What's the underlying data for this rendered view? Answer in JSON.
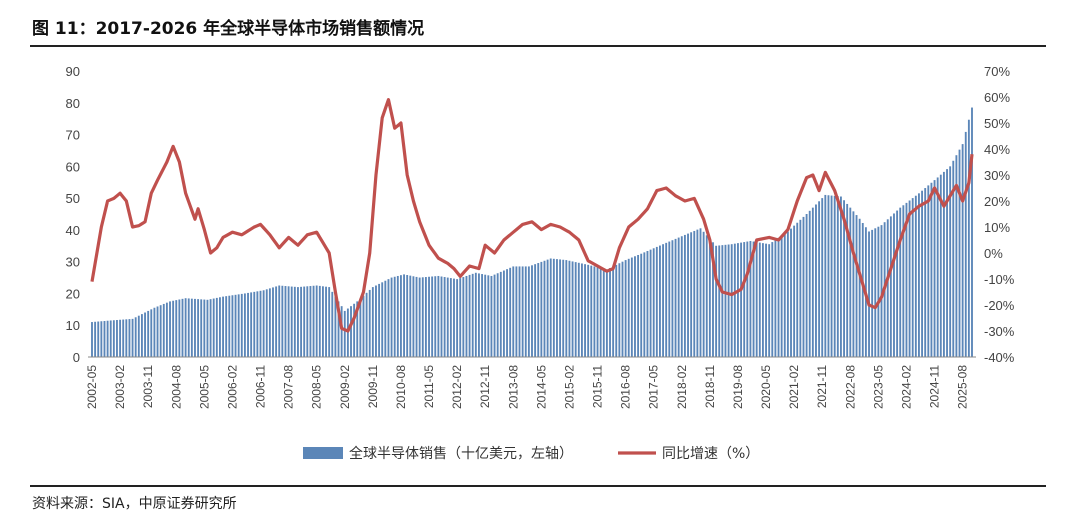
{
  "title": "图 11：2017-2026 年全球半导体市场销售额情况",
  "source": "资料来源：SIA，中原证券研究所",
  "colors": {
    "bar": "#5b86b8",
    "line": "#c0504d"
  },
  "chart_data": {
    "type": "bar",
    "x_labels": [
      "2002-05",
      "2003-02",
      "2003-11",
      "2004-08",
      "2005-05",
      "2006-02",
      "2006-11",
      "2007-08",
      "2008-05",
      "2009-02",
      "2009-11",
      "2010-08",
      "2011-05",
      "2012-02",
      "2012-11",
      "2013-08",
      "2014-05",
      "2015-02",
      "2015-11",
      "2016-08",
      "2017-05",
      "2018-02",
      "2018-11",
      "2019-08",
      "2020-05",
      "2021-02",
      "2021-11",
      "2022-08",
      "2023-05",
      "2024-02",
      "2024-11",
      "2025-08"
    ],
    "yleft_ticks": [
      "0",
      "10",
      "20",
      "30",
      "40",
      "50",
      "60",
      "70",
      "80",
      "90"
    ],
    "yright_ticks": [
      "-40%",
      "-30%",
      "-20%",
      "-10%",
      "0%",
      "10%",
      "20%",
      "30%",
      "40%",
      "50%",
      "60%",
      "70%"
    ],
    "ylim_left": [
      0,
      90
    ],
    "ylim_right": [
      -40,
      70
    ],
    "x_range": [
      "2002-05",
      "2025-11"
    ],
    "series": [
      {
        "name": "全球半导体销售（十亿美元，左轴）",
        "type": "bar",
        "axis": "left",
        "keypoints": [
          [
            "2002-05",
            11.0
          ],
          [
            "2002-11",
            11.5
          ],
          [
            "2003-06",
            12.0
          ],
          [
            "2003-09",
            13.5
          ],
          [
            "2004-01",
            15.5
          ],
          [
            "2004-06",
            17.5
          ],
          [
            "2004-11",
            18.5
          ],
          [
            "2005-06",
            18.0
          ],
          [
            "2005-11",
            19.0
          ],
          [
            "2006-06",
            20.0
          ],
          [
            "2006-12",
            21.0
          ],
          [
            "2007-05",
            22.5
          ],
          [
            "2007-11",
            22.0
          ],
          [
            "2008-05",
            22.5
          ],
          [
            "2008-09",
            22.0
          ],
          [
            "2008-12",
            17.5
          ],
          [
            "2009-02",
            14.5
          ],
          [
            "2009-06",
            17.5
          ],
          [
            "2009-11",
            22.0
          ],
          [
            "2010-05",
            25.0
          ],
          [
            "2010-09",
            26.0
          ],
          [
            "2011-02",
            25.0
          ],
          [
            "2011-08",
            25.5
          ],
          [
            "2012-02",
            24.5
          ],
          [
            "2012-08",
            26.5
          ],
          [
            "2013-01",
            25.5
          ],
          [
            "2013-08",
            28.5
          ],
          [
            "2014-01",
            28.5
          ],
          [
            "2014-08",
            31.0
          ],
          [
            "2015-01",
            30.5
          ],
          [
            "2015-08",
            29.0
          ],
          [
            "2016-02",
            27.5
          ],
          [
            "2016-08",
            30.5
          ],
          [
            "2017-01",
            32.5
          ],
          [
            "2017-08",
            35.5
          ],
          [
            "2018-02",
            38.0
          ],
          [
            "2018-08",
            40.5
          ],
          [
            "2019-01",
            35.0
          ],
          [
            "2019-06",
            35.5
          ],
          [
            "2019-12",
            36.5
          ],
          [
            "2020-06",
            35.5
          ],
          [
            "2020-12",
            39.5
          ],
          [
            "2021-06",
            45.0
          ],
          [
            "2021-12",
            51.0
          ],
          [
            "2022-05",
            50.5
          ],
          [
            "2022-11",
            43.5
          ],
          [
            "2023-02",
            39.5
          ],
          [
            "2023-06",
            41.5
          ],
          [
            "2023-12",
            47.0
          ],
          [
            "2024-06",
            51.5
          ],
          [
            "2024-12",
            56.5
          ],
          [
            "2025-04",
            60.0
          ],
          [
            "2025-08",
            67.0
          ],
          [
            "2025-11",
            78.5
          ]
        ]
      },
      {
        "name": "同比增速（%）",
        "type": "line",
        "axis": "right",
        "keypoints": [
          [
            "2002-05",
            -11
          ],
          [
            "2002-08",
            10
          ],
          [
            "2002-10",
            20
          ],
          [
            "2002-12",
            21
          ],
          [
            "2003-02",
            23
          ],
          [
            "2003-04",
            20
          ],
          [
            "2003-06",
            10
          ],
          [
            "2003-08",
            10.5
          ],
          [
            "2003-10",
            12
          ],
          [
            "2003-12",
            23
          ],
          [
            "2004-02",
            28
          ],
          [
            "2004-05",
            35
          ],
          [
            "2004-07",
            41
          ],
          [
            "2004-09",
            35
          ],
          [
            "2004-11",
            23
          ],
          [
            "2005-02",
            13
          ],
          [
            "2005-03",
            17
          ],
          [
            "2005-05",
            9
          ],
          [
            "2005-07",
            0
          ],
          [
            "2005-09",
            2
          ],
          [
            "2005-11",
            6
          ],
          [
            "2006-02",
            8
          ],
          [
            "2006-05",
            7
          ],
          [
            "2006-09",
            10
          ],
          [
            "2006-11",
            11
          ],
          [
            "2007-02",
            7
          ],
          [
            "2007-05",
            2
          ],
          [
            "2007-08",
            6
          ],
          [
            "2007-11",
            3
          ],
          [
            "2008-02",
            7
          ],
          [
            "2008-05",
            8
          ],
          [
            "2008-09",
            0
          ],
          [
            "2008-11",
            -15
          ],
          [
            "2009-01",
            -29
          ],
          [
            "2009-03",
            -30
          ],
          [
            "2009-05",
            -25
          ],
          [
            "2009-08",
            -15
          ],
          [
            "2009-10",
            0
          ],
          [
            "2009-12",
            30
          ],
          [
            "2010-02",
            52
          ],
          [
            "2010-04",
            59
          ],
          [
            "2010-06",
            48
          ],
          [
            "2010-08",
            50
          ],
          [
            "2010-10",
            30
          ],
          [
            "2010-12",
            20
          ],
          [
            "2011-02",
            12
          ],
          [
            "2011-05",
            3
          ],
          [
            "2011-08",
            -2
          ],
          [
            "2011-11",
            -4
          ],
          [
            "2012-01",
            -6
          ],
          [
            "2012-03",
            -9
          ],
          [
            "2012-06",
            -5
          ],
          [
            "2012-09",
            -6
          ],
          [
            "2012-11",
            3
          ],
          [
            "2013-02",
            0
          ],
          [
            "2013-05",
            5
          ],
          [
            "2013-08",
            8
          ],
          [
            "2013-11",
            11
          ],
          [
            "2014-02",
            12
          ],
          [
            "2014-05",
            9
          ],
          [
            "2014-08",
            11
          ],
          [
            "2014-11",
            10
          ],
          [
            "2015-02",
            8
          ],
          [
            "2015-05",
            5
          ],
          [
            "2015-08",
            -3
          ],
          [
            "2015-11",
            -5
          ],
          [
            "2016-02",
            -7
          ],
          [
            "2016-04",
            -6
          ],
          [
            "2016-06",
            2
          ],
          [
            "2016-09",
            10
          ],
          [
            "2016-12",
            13
          ],
          [
            "2017-03",
            17
          ],
          [
            "2017-06",
            24
          ],
          [
            "2017-09",
            25
          ],
          [
            "2017-12",
            22
          ],
          [
            "2018-03",
            20
          ],
          [
            "2018-06",
            21
          ],
          [
            "2018-09",
            13
          ],
          [
            "2018-11",
            5
          ],
          [
            "2019-01",
            -10
          ],
          [
            "2019-03",
            -15
          ],
          [
            "2019-06",
            -16
          ],
          [
            "2019-09",
            -14
          ],
          [
            "2019-11",
            -8
          ],
          [
            "2020-02",
            5
          ],
          [
            "2020-06",
            6
          ],
          [
            "2020-09",
            5
          ],
          [
            "2020-12",
            9
          ],
          [
            "2021-03",
            20
          ],
          [
            "2021-06",
            29
          ],
          [
            "2021-08",
            30
          ],
          [
            "2021-10",
            24
          ],
          [
            "2021-12",
            31
          ],
          [
            "2022-03",
            24
          ],
          [
            "2022-06",
            13
          ],
          [
            "2022-09",
            0
          ],
          [
            "2022-12",
            -12
          ],
          [
            "2023-02",
            -20
          ],
          [
            "2023-04",
            -21
          ],
          [
            "2023-06",
            -17
          ],
          [
            "2023-09",
            -6
          ],
          [
            "2023-12",
            5
          ],
          [
            "2024-03",
            15
          ],
          [
            "2024-06",
            18
          ],
          [
            "2024-09",
            20
          ],
          [
            "2024-11",
            25
          ],
          [
            "2025-02",
            18
          ],
          [
            "2025-04",
            22
          ],
          [
            "2025-06",
            26
          ],
          [
            "2025-08",
            20
          ],
          [
            "2025-10",
            27
          ],
          [
            "2025-11",
            38
          ]
        ]
      }
    ],
    "grid": false,
    "legend": "bottom-center"
  }
}
